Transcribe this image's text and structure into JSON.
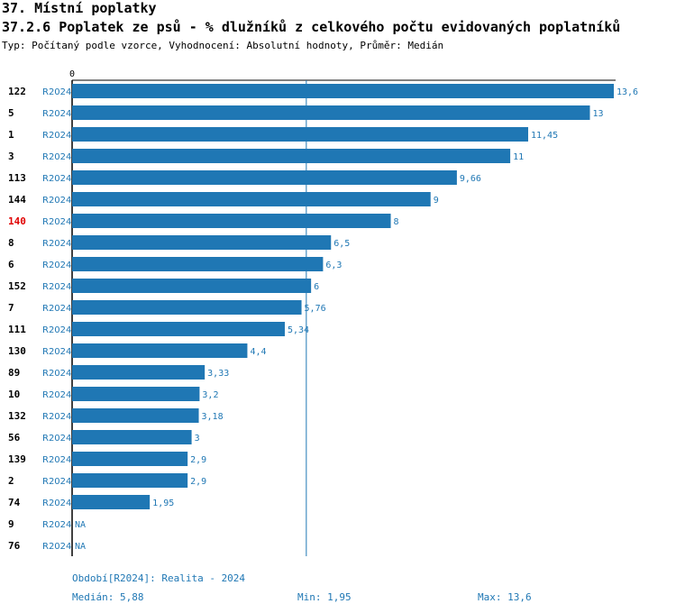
{
  "header": {
    "title": "37. Místní poplatky",
    "subtitle": "37.2.6 Poplatek ze psů - % dlužníků z celkového počtu evidovaných poplatníků",
    "type_line": "Typ: Počítaný podle vzorce, Vyhodnocení: Absolutní hodnoty, Průměr: Medián"
  },
  "colors": {
    "bar": "#1f77b4",
    "highlight_label": "#e00000",
    "text": "#000000"
  },
  "chart_data": {
    "type": "bar",
    "orientation": "horizontal",
    "axis_zero_label": "0",
    "xlim": [
      0,
      13.6
    ],
    "median_line": 5.88,
    "highlight_category": "140",
    "series_label": "R2024",
    "categories": [
      "122",
      "5",
      "1",
      "3",
      "113",
      "144",
      "140",
      "8",
      "6",
      "152",
      "7",
      "111",
      "130",
      "89",
      "10",
      "132",
      "56",
      "139",
      "2",
      "74",
      "9",
      "76"
    ],
    "values": [
      13.6,
      13,
      11.45,
      11,
      9.66,
      9,
      8,
      6.5,
      6.3,
      6,
      5.76,
      5.34,
      4.4,
      3.33,
      3.2,
      3.18,
      3,
      2.9,
      2.9,
      1.95,
      null,
      null
    ],
    "value_labels": [
      "13,6",
      "13",
      "11,45",
      "11",
      "9,66",
      "9",
      "8",
      "6,5",
      "6,3",
      "6",
      "5,76",
      "5,34",
      "4,4",
      "3,33",
      "3,2",
      "3,18",
      "3",
      "2,9",
      "2,9",
      "1,95",
      "NA",
      "NA"
    ]
  },
  "footer": {
    "period": "Období[R2024]: Realita - 2024",
    "median": "Medián: 5,88",
    "min": "Min: 1,95",
    "max": "Max: 13,6"
  }
}
